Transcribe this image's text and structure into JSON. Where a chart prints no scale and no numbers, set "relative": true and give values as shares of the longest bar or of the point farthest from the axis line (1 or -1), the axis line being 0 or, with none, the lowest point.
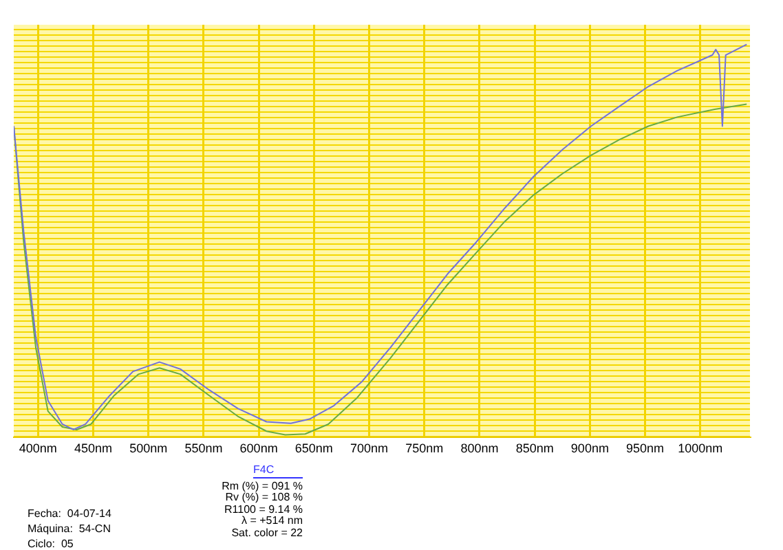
{
  "chart_data": {
    "type": "line",
    "relative": true,
    "x": [
      378,
      387,
      398,
      409,
      422,
      432,
      443,
      465,
      486,
      510,
      529,
      555,
      581,
      607,
      629,
      646,
      668,
      693,
      719,
      745,
      771,
      797,
      823,
      849,
      875,
      901,
      927,
      953,
      979,
      1011,
      1014,
      1017,
      1020,
      1023,
      1042
    ],
    "series": [
      {
        "color": "#7070dd",
        "values": [
          0.792,
          0.523,
          0.255,
          0.094,
          0.034,
          0.02,
          0.034,
          0.107,
          0.168,
          0.192,
          0.174,
          0.121,
          0.074,
          0.04,
          0.036,
          0.047,
          0.081,
          0.141,
          0.228,
          0.322,
          0.416,
          0.497,
          0.584,
          0.664,
          0.732,
          0.792,
          0.843,
          0.893,
          0.933,
          0.973,
          0.987,
          0.973,
          0.792,
          0.973,
          1.0
        ]
      },
      {
        "color": "#66aa44",
        "x": [
          378,
          387,
          398,
          409,
          422,
          435,
          448,
          469,
          491,
          510,
          529,
          555,
          581,
          607,
          624,
          642,
          663,
          689,
          719,
          745,
          771,
          797,
          823,
          849,
          875,
          901,
          927,
          953,
          979,
          1013,
          1042
        ],
        "values": [
          0.792,
          0.497,
          0.228,
          0.067,
          0.027,
          0.02,
          0.034,
          0.107,
          0.161,
          0.177,
          0.161,
          0.107,
          0.054,
          0.016,
          0.007,
          0.009,
          0.034,
          0.101,
          0.201,
          0.295,
          0.389,
          0.47,
          0.55,
          0.617,
          0.671,
          0.718,
          0.758,
          0.792,
          0.815,
          0.835,
          0.848
        ]
      }
    ],
    "xlim": [
      378,
      1045
    ],
    "xticks": [
      {
        "value": 400,
        "label": "400nm"
      },
      {
        "value": 450,
        "label": "450nm"
      },
      {
        "value": 500,
        "label": "500nm"
      },
      {
        "value": 550,
        "label": "550nm"
      },
      {
        "value": 600,
        "label": "600nm"
      },
      {
        "value": 650,
        "label": "650nm"
      },
      {
        "value": 700,
        "label": "700nm"
      },
      {
        "value": 750,
        "label": "750nm"
      },
      {
        "value": 800,
        "label": "800nm"
      },
      {
        "value": 850,
        "label": "850nm"
      },
      {
        "value": 900,
        "label": "900nm"
      },
      {
        "value": 950,
        "label": "950nm"
      },
      {
        "value": 1000,
        "label": "1000nm"
      }
    ],
    "grid": "x",
    "legend": false,
    "marker": "none",
    "line_style": "solid",
    "annotations": [
      "Fecha:  04-07-14",
      "Máquina:  54-CN",
      "Ciclo:  05",
      "F4C",
      "Rm (%) = 091 %",
      "Rv (%) = 108 %",
      "R1100 = 9.14 %",
      "λ = +514 nm",
      "Sat. color = 22"
    ]
  }
}
